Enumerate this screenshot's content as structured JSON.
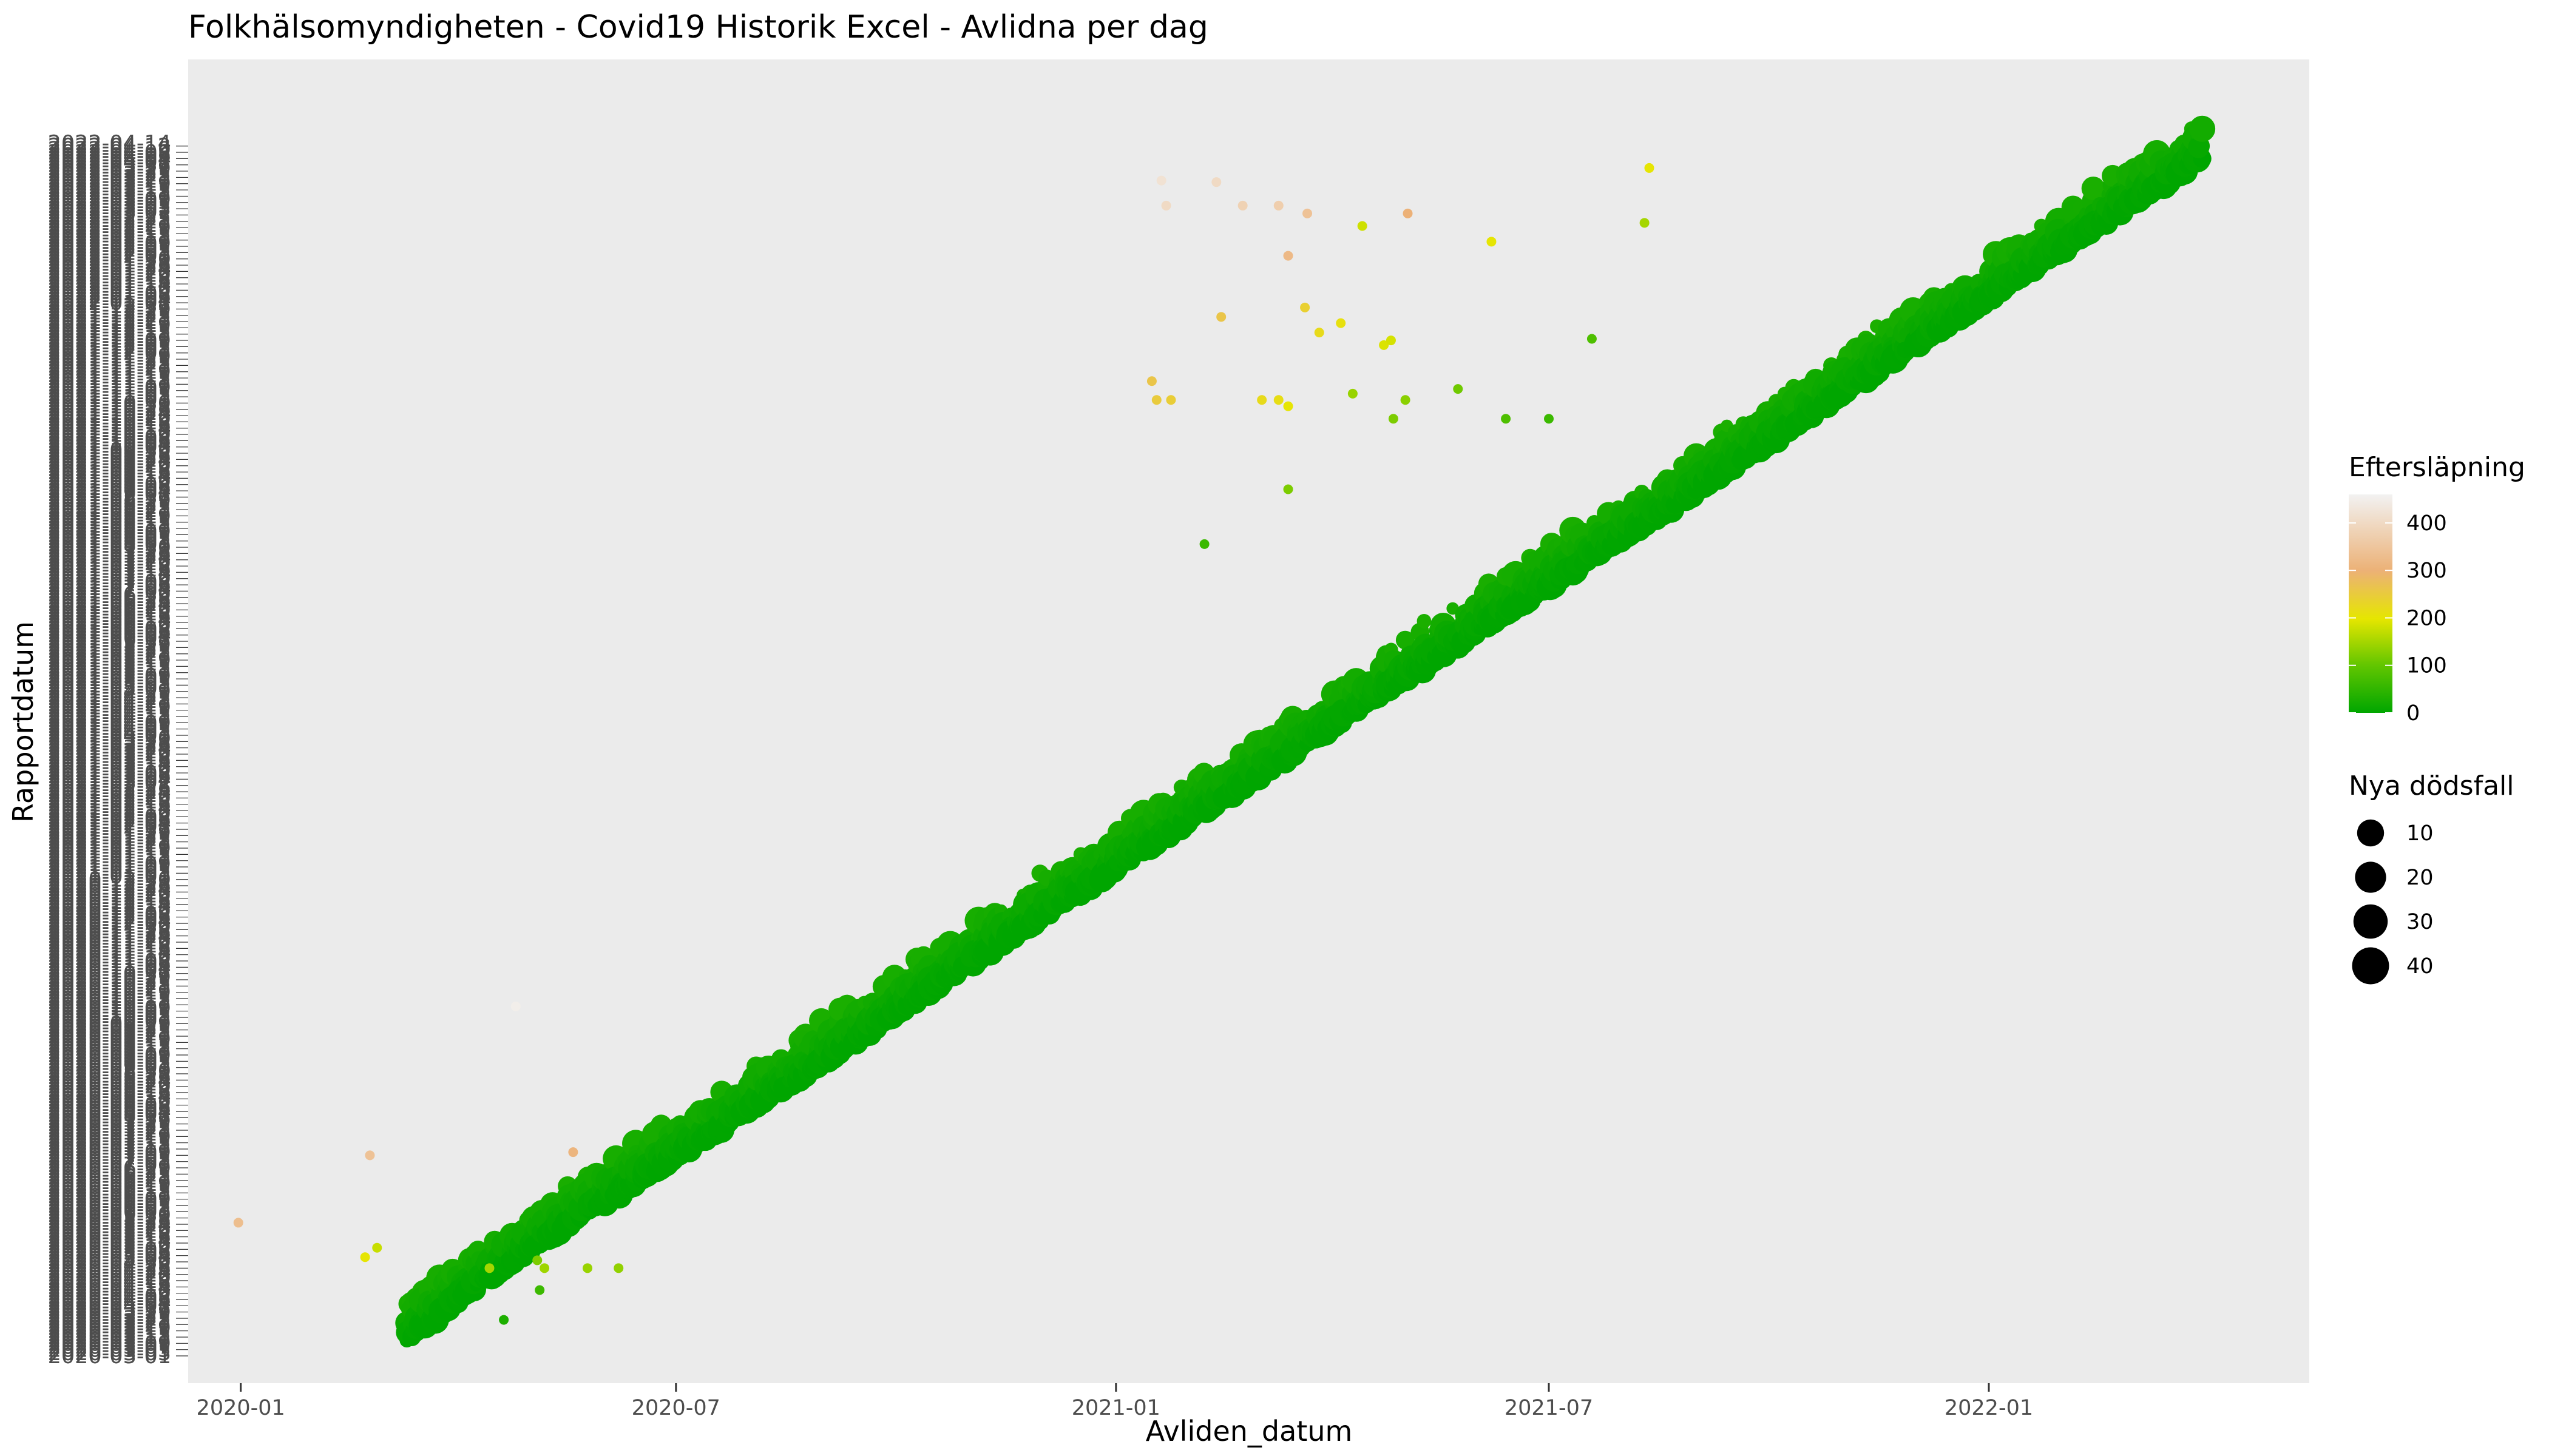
{
  "chart_data": {
    "type": "scatter",
    "title": "Folkhälsomyndigheten - Covid19 Historik Excel - Avlidna per dag",
    "xlabel": "Avliden_datum",
    "ylabel": "Rapportdatum",
    "x_ticks": [
      "2020-01",
      "2020-07",
      "2021-01",
      "2021-07",
      "2022-01"
    ],
    "x_tick_values": [
      "2020-01-01",
      "2020-07-01",
      "2021-01-01",
      "2021-07-01",
      "2022-01-01"
    ],
    "xlim": [
      "2019-12-10",
      "2022-05-15"
    ],
    "ylim": [
      "2020-03-01",
      "2022-04-15"
    ],
    "y_tick_labels_overplotted": true,
    "grid": false,
    "panel_background": "#ebebeb",
    "color_legend": {
      "title": "Eftersläpning",
      "ticks": [
        0,
        100,
        200,
        300,
        400
      ],
      "range": [
        0,
        460
      ],
      "colors": [
        "#00a600",
        "#63c600",
        "#e6e600",
        "#ecb176",
        "#f2f2f2"
      ]
    },
    "size_legend": {
      "title": "Nya dödsfall",
      "ticks": [
        10,
        20,
        30,
        40
      ]
    },
    "main_band": [
      {
        "x": "2020-03-11",
        "y": "2020-03-11",
        "lag": 0
      },
      {
        "x": "2020-04-15",
        "y": "2020-04-22",
        "lag": 7
      },
      {
        "x": "2020-06-01",
        "y": "2020-06-07",
        "lag": 6
      },
      {
        "x": "2020-09-01",
        "y": "2020-09-04",
        "lag": 3
      },
      {
        "x": "2020-11-15",
        "y": "2020-11-20",
        "lag": 5
      },
      {
        "x": "2021-01-15",
        "y": "2021-01-20",
        "lag": 5
      },
      {
        "x": "2021-03-15",
        "y": "2021-03-19",
        "lag": 4
      },
      {
        "x": "2021-05-20",
        "y": "2021-05-25",
        "lag": 5
      },
      {
        "x": "2021-08-15",
        "y": "2021-08-18",
        "lag": 3
      },
      {
        "x": "2021-10-15",
        "y": "2021-10-19",
        "lag": 4
      },
      {
        "x": "2022-01-15",
        "y": "2022-01-19",
        "lag": 4
      },
      {
        "x": "2022-04-01",
        "y": "2022-04-05",
        "lag": 4
      }
    ],
    "outliers": [
      {
        "x": "2019-12-31",
        "y": "2020-05-25",
        "lag": 330,
        "deaths": 1
      },
      {
        "x": "2020-02-24",
        "y": "2020-07-07",
        "lag": 340,
        "deaths": 1
      },
      {
        "x": "2020-04-25",
        "y": "2020-10-10",
        "lag": 450,
        "deaths": 1
      },
      {
        "x": "2020-05-19",
        "y": "2020-07-09",
        "lag": 310,
        "deaths": 1
      },
      {
        "x": "2020-02-22",
        "y": "2020-05-03",
        "lag": 200,
        "deaths": 1
      },
      {
        "x": "2020-02-27",
        "y": "2020-05-09",
        "lag": 175,
        "deaths": 1
      },
      {
        "x": "2020-04-14",
        "y": "2020-04-26",
        "lag": 150,
        "deaths": 1
      },
      {
        "x": "2020-05-07",
        "y": "2020-04-26",
        "lag": 145,
        "deaths": 1
      },
      {
        "x": "2020-05-25",
        "y": "2020-04-26",
        "lag": 140,
        "deaths": 1
      },
      {
        "x": "2020-06-07",
        "y": "2020-04-26",
        "lag": 135,
        "deaths": 1
      },
      {
        "x": "2020-05-04",
        "y": "2020-05-01",
        "lag": 120,
        "deaths": 1
      },
      {
        "x": "2020-05-05",
        "y": "2020-04-12",
        "lag": 60,
        "deaths": 1
      },
      {
        "x": "2020-04-20",
        "y": "2020-03-24",
        "lag": 30,
        "deaths": 1
      },
      {
        "x": "2021-01-20",
        "y": "2022-03-21",
        "lag": 420,
        "deaths": 1
      },
      {
        "x": "2021-02-12",
        "y": "2022-03-20",
        "lag": 400,
        "deaths": 1
      },
      {
        "x": "2021-01-22",
        "y": "2022-03-05",
        "lag": 400,
        "deaths": 1
      },
      {
        "x": "2021-02-23",
        "y": "2022-03-05",
        "lag": 380,
        "deaths": 1
      },
      {
        "x": "2021-03-10",
        "y": "2022-03-05",
        "lag": 370,
        "deaths": 1
      },
      {
        "x": "2021-03-22",
        "y": "2022-02-28",
        "lag": 340,
        "deaths": 1
      },
      {
        "x": "2021-05-03",
        "y": "2022-02-28",
        "lag": 300,
        "deaths": 1
      },
      {
        "x": "2021-03-14",
        "y": "2022-02-01",
        "lag": 320,
        "deaths": 1
      },
      {
        "x": "2021-02-14",
        "y": "2021-12-24",
        "lag": 260,
        "deaths": 1
      },
      {
        "x": "2021-03-21",
        "y": "2021-12-30",
        "lag": 240,
        "deaths": 1
      },
      {
        "x": "2021-03-27",
        "y": "2021-12-14",
        "lag": 220,
        "deaths": 1
      },
      {
        "x": "2021-04-05",
        "y": "2021-12-20",
        "lag": 210,
        "deaths": 1
      },
      {
        "x": "2021-01-16",
        "y": "2021-11-13",
        "lag": 260,
        "deaths": 1
      },
      {
        "x": "2021-01-18",
        "y": "2021-11-01",
        "lag": 250,
        "deaths": 1
      },
      {
        "x": "2021-01-24",
        "y": "2021-11-01",
        "lag": 245,
        "deaths": 1
      },
      {
        "x": "2021-03-03",
        "y": "2021-11-01",
        "lag": 220,
        "deaths": 1
      },
      {
        "x": "2021-03-10",
        "y": "2021-11-01",
        "lag": 215,
        "deaths": 1
      },
      {
        "x": "2021-03-14",
        "y": "2021-10-28",
        "lag": 200,
        "deaths": 1
      },
      {
        "x": "2021-04-23",
        "y": "2021-12-06",
        "lag": 190,
        "deaths": 1
      },
      {
        "x": "2021-04-26",
        "y": "2021-12-09",
        "lag": 185,
        "deaths": 1
      },
      {
        "x": "2021-04-10",
        "y": "2021-11-05",
        "lag": 140,
        "deaths": 1
      },
      {
        "x": "2021-05-02",
        "y": "2021-11-01",
        "lag": 130,
        "deaths": 1
      },
      {
        "x": "2021-04-27",
        "y": "2021-10-20",
        "lag": 120,
        "deaths": 1
      },
      {
        "x": "2021-05-24",
        "y": "2021-11-08",
        "lag": 110,
        "deaths": 1
      },
      {
        "x": "2021-06-13",
        "y": "2021-10-20",
        "lag": 80,
        "deaths": 1
      },
      {
        "x": "2021-03-14",
        "y": "2021-09-05",
        "lag": 120,
        "deaths": 1
      },
      {
        "x": "2021-02-07",
        "y": "2021-08-01",
        "lag": 60,
        "deaths": 1
      },
      {
        "x": "2021-08-12",
        "y": "2022-03-29",
        "lag": 200,
        "deaths": 1
      },
      {
        "x": "2021-08-10",
        "y": "2022-02-22",
        "lag": 150,
        "deaths": 1
      },
      {
        "x": "2021-06-07",
        "y": "2022-02-10",
        "lag": 200,
        "deaths": 1
      },
      {
        "x": "2021-04-14",
        "y": "2022-02-20",
        "lag": 180,
        "deaths": 1
      },
      {
        "x": "2021-07-19",
        "y": "2021-12-10",
        "lag": 80,
        "deaths": 1
      },
      {
        "x": "2021-07-01",
        "y": "2021-10-20",
        "lag": 60,
        "deaths": 1
      }
    ]
  }
}
